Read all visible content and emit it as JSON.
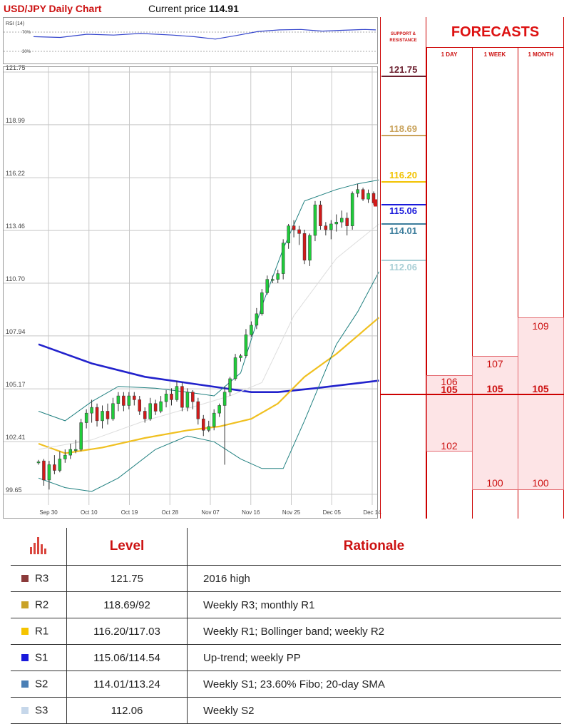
{
  "header": {
    "title": "USD/JPY Daily Chart",
    "price_label": "Current price",
    "price_value": "114.91"
  },
  "rsi": {
    "label": "RSI (14)",
    "levels": [
      "70%",
      "30%"
    ]
  },
  "support_resistance": {
    "title": "SUPPORT & RESISTANCE",
    "levels": [
      {
        "value": "121.75",
        "color": "#6b1f2e"
      },
      {
        "value": "118.69",
        "color": "#c9a25a"
      },
      {
        "value": "116.20",
        "color": "#f2c200"
      },
      {
        "value": "115.06",
        "color": "#1a1adb"
      },
      {
        "value": "114.01",
        "color": "#3c7d9c"
      },
      {
        "value": "112.06",
        "color": "#a9cfd6"
      }
    ]
  },
  "forecasts": {
    "title": "FORECASTS",
    "columns": [
      "1 DAY",
      "1 WEEK",
      "1 MONTH"
    ],
    "day": {
      "high": "106",
      "mid": "105",
      "low": "102"
    },
    "week": {
      "high": "107",
      "mid": "105",
      "low": "100"
    },
    "month": {
      "high": "109",
      "mid": "105",
      "low": "100"
    }
  },
  "table": {
    "headers": {
      "icon": "bar-chart-icon",
      "level": "Level",
      "rationale": "Rationale"
    },
    "rows": [
      {
        "tag": "R3",
        "color": "#8b3a3a",
        "level": "121.75",
        "rationale": "2016 high"
      },
      {
        "tag": "R2",
        "color": "#c9a227",
        "level": "118.69/92",
        "rationale": "Weekly R3; monthly R1"
      },
      {
        "tag": "R1",
        "color": "#f5c400",
        "level": "116.20/117.03",
        "rationale": "Weekly R1; Bollinger band; weekly R2"
      },
      {
        "tag": "S1",
        "color": "#1a1adb",
        "level": "115.06/114.54",
        "rationale": "Up-trend; weekly PP"
      },
      {
        "tag": "S2",
        "color": "#4a7fb5",
        "level": "114.01/113.24",
        "rationale": "Weekly S1; 23.60% Fibo; 20-day SMA"
      },
      {
        "tag": "S3",
        "color": "#c6d7ea",
        "level": "112.06",
        "rationale": "Weekly S2"
      }
    ]
  },
  "chart_data": {
    "type": "candlestick",
    "ylim": [
      99.65,
      121.75
    ],
    "y_ticks": [
      "121.75",
      "118.99",
      "116.22",
      "113.46",
      "110.70",
      "107.94",
      "105.17",
      "102.41",
      "99.65"
    ],
    "x_ticks": [
      "Sep 30",
      "Oct 10",
      "Oct 19",
      "Oct 28",
      "Nov 07",
      "Nov 16",
      "Nov 25",
      "Dec 05",
      "Dec 14"
    ],
    "grid": true,
    "candles": [
      {
        "o": 101.3,
        "c": 101.35,
        "h": 101.45,
        "l": 101.2
      },
      {
        "o": 101.4,
        "c": 100.4,
        "h": 101.5,
        "l": 100.1
      },
      {
        "o": 100.4,
        "c": 101.2,
        "h": 101.4,
        "l": 99.9
      },
      {
        "o": 101.2,
        "c": 100.9,
        "h": 101.7,
        "l": 100.7
      },
      {
        "o": 100.9,
        "c": 101.5,
        "h": 101.9,
        "l": 100.8
      },
      {
        "o": 101.5,
        "c": 101.7,
        "h": 102.0,
        "l": 101.3
      },
      {
        "o": 101.7,
        "c": 102.0,
        "h": 102.3,
        "l": 101.5
      },
      {
        "o": 102.0,
        "c": 102.0,
        "h": 102.5,
        "l": 101.8
      },
      {
        "o": 102.0,
        "c": 103.4,
        "h": 103.6,
        "l": 101.9
      },
      {
        "o": 103.4,
        "c": 103.9,
        "h": 104.1,
        "l": 103.1
      },
      {
        "o": 103.9,
        "c": 104.2,
        "h": 104.6,
        "l": 103.4
      },
      {
        "o": 104.2,
        "c": 103.5,
        "h": 104.4,
        "l": 103.2
      },
      {
        "o": 103.5,
        "c": 104.0,
        "h": 104.3,
        "l": 103.1
      },
      {
        "o": 104.0,
        "c": 103.6,
        "h": 104.4,
        "l": 103.3
      },
      {
        "o": 103.6,
        "c": 104.4,
        "h": 104.7,
        "l": 103.5
      },
      {
        "o": 104.4,
        "c": 104.8,
        "h": 105.0,
        "l": 104.0
      },
      {
        "o": 104.8,
        "c": 104.3,
        "h": 105.0,
        "l": 104.0
      },
      {
        "o": 104.3,
        "c": 104.8,
        "h": 105.0,
        "l": 104.1
      },
      {
        "o": 104.8,
        "c": 104.6,
        "h": 105.0,
        "l": 104.3
      },
      {
        "o": 104.6,
        "c": 104.0,
        "h": 104.8,
        "l": 103.8
      },
      {
        "o": 104.0,
        "c": 103.6,
        "h": 104.2,
        "l": 103.4
      },
      {
        "o": 103.6,
        "c": 104.4,
        "h": 104.7,
        "l": 103.5
      },
      {
        "o": 104.4,
        "c": 104.0,
        "h": 104.6,
        "l": 103.8
      },
      {
        "o": 104.0,
        "c": 104.5,
        "h": 104.8,
        "l": 103.9
      },
      {
        "o": 104.5,
        "c": 104.9,
        "h": 105.1,
        "l": 104.2
      },
      {
        "o": 104.9,
        "c": 104.6,
        "h": 105.2,
        "l": 104.3
      },
      {
        "o": 104.6,
        "c": 105.3,
        "h": 105.6,
        "l": 104.5
      },
      {
        "o": 105.3,
        "c": 104.2,
        "h": 105.5,
        "l": 104.0
      },
      {
        "o": 104.2,
        "c": 105.0,
        "h": 105.2,
        "l": 104.0
      },
      {
        "o": 105.0,
        "c": 104.5,
        "h": 105.1,
        "l": 104.1
      },
      {
        "o": 104.5,
        "c": 103.6,
        "h": 104.7,
        "l": 103.3
      },
      {
        "o": 103.6,
        "c": 103.0,
        "h": 103.8,
        "l": 102.7
      },
      {
        "o": 103.0,
        "c": 103.2,
        "h": 103.5,
        "l": 102.9
      },
      {
        "o": 103.2,
        "c": 103.9,
        "h": 104.1,
        "l": 103.0
      },
      {
        "o": 103.9,
        "c": 104.3,
        "h": 104.4,
        "l": 103.7
      },
      {
        "o": 104.3,
        "c": 105.0,
        "h": 105.3,
        "l": 101.2
      },
      {
        "o": 105.0,
        "c": 105.7,
        "h": 105.8,
        "l": 104.8
      },
      {
        "o": 105.7,
        "c": 106.8,
        "h": 107.0,
        "l": 105.6
      },
      {
        "o": 106.8,
        "c": 106.9,
        "h": 107.0,
        "l": 106.6
      },
      {
        "o": 106.9,
        "c": 108.0,
        "h": 108.3,
        "l": 106.8
      },
      {
        "o": 108.0,
        "c": 108.5,
        "h": 108.7,
        "l": 107.9
      },
      {
        "o": 108.5,
        "c": 109.1,
        "h": 109.4,
        "l": 108.3
      },
      {
        "o": 109.1,
        "c": 110.2,
        "h": 110.4,
        "l": 109.0
      },
      {
        "o": 110.2,
        "c": 110.9,
        "h": 111.1,
        "l": 110.1
      },
      {
        "o": 110.9,
        "c": 110.9,
        "h": 111.1,
        "l": 110.7
      },
      {
        "o": 110.9,
        "c": 111.2,
        "h": 111.4,
        "l": 110.7
      },
      {
        "o": 111.2,
        "c": 112.8,
        "h": 113.0,
        "l": 110.9
      },
      {
        "o": 112.8,
        "c": 113.7,
        "h": 113.8,
        "l": 112.5
      },
      {
        "o": 113.7,
        "c": 113.5,
        "h": 114.0,
        "l": 113.1
      },
      {
        "o": 113.5,
        "c": 113.3,
        "h": 113.7,
        "l": 112.7
      },
      {
        "o": 113.3,
        "c": 111.9,
        "h": 113.5,
        "l": 111.7
      },
      {
        "o": 111.9,
        "c": 113.2,
        "h": 113.3,
        "l": 111.6
      },
      {
        "o": 113.2,
        "c": 114.8,
        "h": 115.0,
        "l": 112.9
      },
      {
        "o": 114.8,
        "c": 113.7,
        "h": 115.0,
        "l": 113.5
      },
      {
        "o": 113.7,
        "c": 113.5,
        "h": 113.9,
        "l": 113.2
      },
      {
        "o": 113.5,
        "c": 113.8,
        "h": 114.0,
        "l": 113.0
      },
      {
        "o": 113.8,
        "c": 113.9,
        "h": 114.3,
        "l": 113.4
      },
      {
        "o": 113.9,
        "c": 114.1,
        "h": 114.5,
        "l": 113.6
      },
      {
        "o": 114.1,
        "c": 113.7,
        "h": 114.4,
        "l": 113.2
      },
      {
        "o": 113.7,
        "c": 115.4,
        "h": 115.5,
        "l": 113.5
      },
      {
        "o": 115.4,
        "c": 115.6,
        "h": 115.9,
        "l": 115.2
      },
      {
        "o": 115.6,
        "c": 115.1,
        "h": 115.7,
        "l": 115.0
      },
      {
        "o": 115.1,
        "c": 115.4,
        "h": 115.6,
        "l": 114.9
      },
      {
        "o": 115.4,
        "c": 114.9,
        "h": 115.5,
        "l": 114.8
      }
    ],
    "series": [
      {
        "color": "#2222cc",
        "values": [
          [
            0,
            107.5
          ],
          [
            10,
            106.5
          ],
          [
            20,
            105.8
          ],
          [
            30,
            105.4
          ],
          [
            40,
            105.0
          ],
          [
            45,
            105.0
          ],
          [
            52,
            105.2
          ],
          [
            64,
            105.6
          ]
        ]
      },
      {
        "color": "#f0c020",
        "values": [
          [
            0,
            102.3
          ],
          [
            5,
            101.8
          ],
          [
            12,
            102.1
          ],
          [
            20,
            102.6
          ],
          [
            28,
            103.0
          ],
          [
            34,
            103.2
          ],
          [
            40,
            103.6
          ],
          [
            45,
            104.4
          ],
          [
            50,
            105.8
          ],
          [
            56,
            107.0
          ],
          [
            64,
            108.9
          ]
        ]
      },
      {
        "color": "#208080",
        "values": [
          [
            0,
            104.0
          ],
          [
            5,
            103.5
          ],
          [
            10,
            104.5
          ],
          [
            15,
            105.3
          ],
          [
            22,
            105.2
          ],
          [
            28,
            105.0
          ],
          [
            33,
            104.8
          ],
          [
            38,
            106.0
          ],
          [
            42,
            109.5
          ],
          [
            46,
            112.5
          ],
          [
            50,
            115.0
          ],
          [
            56,
            115.6
          ],
          [
            60,
            115.9
          ],
          [
            64,
            116.1
          ]
        ]
      },
      {
        "color": "#208080",
        "values": [
          [
            0,
            100.5
          ],
          [
            5,
            100.0
          ],
          [
            10,
            99.8
          ],
          [
            15,
            100.5
          ],
          [
            22,
            102.0
          ],
          [
            28,
            102.7
          ],
          [
            33,
            102.4
          ],
          [
            38,
            101.5
          ],
          [
            42,
            101.0
          ],
          [
            46,
            101.0
          ],
          [
            50,
            103.5
          ],
          [
            56,
            107.5
          ],
          [
            60,
            109.2
          ],
          [
            64,
            111.3
          ]
        ]
      },
      {
        "color": "#dddddd",
        "values": [
          [
            0,
            102.0
          ],
          [
            10,
            102.5
          ],
          [
            20,
            103.5
          ],
          [
            30,
            104.3
          ],
          [
            36,
            104.8
          ],
          [
            42,
            105.5
          ],
          [
            48,
            109.0
          ],
          [
            56,
            112.0
          ],
          [
            64,
            113.8
          ]
        ]
      }
    ],
    "rsi": [
      [
        0,
        60
      ],
      [
        5,
        58
      ],
      [
        10,
        66
      ],
      [
        15,
        64
      ],
      [
        20,
        68
      ],
      [
        26,
        64
      ],
      [
        30,
        60
      ],
      [
        34,
        54
      ],
      [
        38,
        63
      ],
      [
        42,
        73
      ],
      [
        46,
        77
      ],
      [
        50,
        78
      ],
      [
        54,
        74
      ],
      [
        58,
        76
      ],
      [
        62,
        78
      ],
      [
        64,
        77
      ]
    ]
  }
}
